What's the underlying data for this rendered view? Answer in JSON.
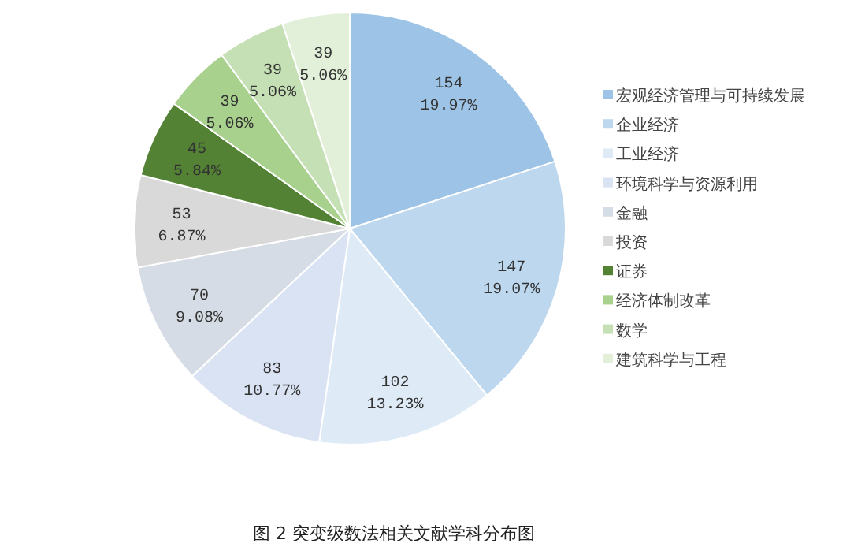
{
  "chart_data": {
    "type": "pie",
    "title": "图 2 突变级数法相关文献学科分布图",
    "categories": [
      "宏观经济管理与可持续发展",
      "企业经济",
      "工业经济",
      "环境科学与资源利用",
      "金融",
      "投资",
      "证券",
      "经济体制改革",
      "数学",
      "建筑科学与工程"
    ],
    "values": [
      154,
      147,
      102,
      83,
      70,
      53,
      45,
      39,
      39,
      39
    ],
    "colors": [
      "#9dc3e6",
      "#bdd7ee",
      "#deebf7",
      "#dae3f3",
      "#d6dce5",
      "#d9d9d9",
      "#548235",
      "#a9d18e",
      "#c5e0b4",
      "#e2f0d9"
    ],
    "value_labels": [
      "154\n19.97%",
      "147\n19.07%",
      "102\n13.23%",
      "83\n10.77%",
      "70\n9.08%",
      "53\n6.87%",
      "45\n5.84%",
      "39\n5.06%",
      "39\n5.06%",
      "39\n5.06%"
    ],
    "legend": "right"
  }
}
